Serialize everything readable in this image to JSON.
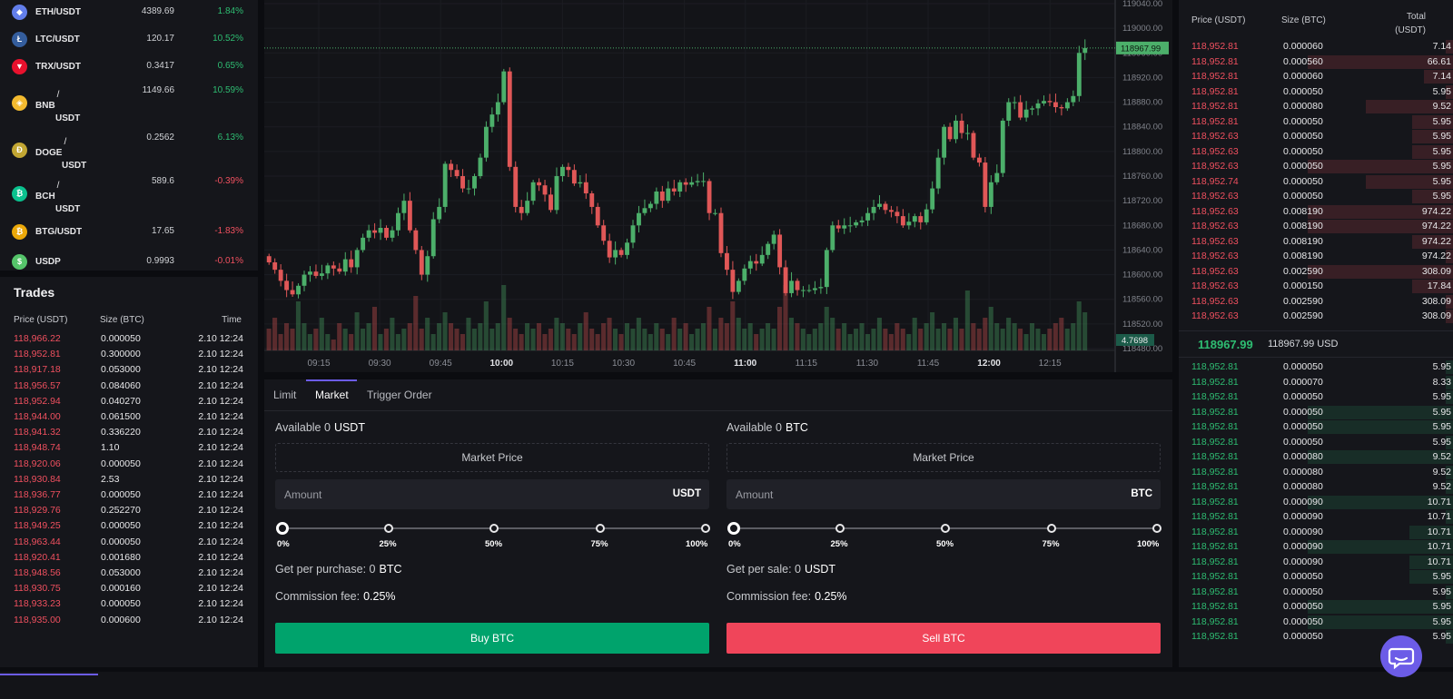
{
  "markets": [
    {
      "base": "ETH",
      "quote": "/USDT",
      "price": "4389.69",
      "change": "1.84%",
      "dir": "up",
      "icon_color": "#627eea",
      "icon": "eth-icon",
      "glyph": "◆",
      "split": false
    },
    {
      "base": "LTC",
      "quote": "/USDT",
      "price": "120.17",
      "change": "10.52%",
      "dir": "up",
      "icon_color": "#345d9d",
      "icon": "ltc-icon",
      "glyph": "Ł",
      "split": false
    },
    {
      "base": "TRX",
      "quote": "/USDT",
      "price": "0.3417",
      "change": "0.65%",
      "dir": "up",
      "icon_color": "#e8112d",
      "icon": "trx-icon",
      "glyph": "▼",
      "split": false
    },
    {
      "base": "BNB",
      "quote": "USDT",
      "price": "1149.66",
      "change": "10.59%",
      "dir": "up",
      "icon_color": "#f3ba2f",
      "icon": "bnb-icon",
      "glyph": "◈",
      "split": true
    },
    {
      "base": "DOGE",
      "quote": "USDT",
      "price": "0.2562",
      "change": "6.13%",
      "dir": "up",
      "icon_color": "#c2a633",
      "icon": "doge-icon",
      "glyph": "Ð",
      "split": true
    },
    {
      "base": "BCH",
      "quote": "USDT",
      "price": "589.6",
      "change": "-0.39%",
      "dir": "down",
      "icon_color": "#0ac18e",
      "icon": "bch-icon",
      "glyph": "₿",
      "split": true
    },
    {
      "base": "BTG",
      "quote": "/USDT",
      "price": "17.65",
      "change": "-1.83%",
      "dir": "down",
      "icon_color": "#eba809",
      "icon": "btg-icon",
      "glyph": "₿",
      "split": false
    },
    {
      "base": "USDP",
      "quote": "",
      "price": "0.9993",
      "change": "-0.01%",
      "dir": "down",
      "icon_color": "#55c46a",
      "icon": "usdp-icon",
      "glyph": "$",
      "split": false
    }
  ],
  "trades": {
    "title": "Trades",
    "headers": {
      "price": "Price (USDT)",
      "size": "Size (BTC)",
      "time": "Time"
    },
    "rows": [
      {
        "price": "118,966.22",
        "size": "0.000050",
        "time": "2.10 12:24"
      },
      {
        "price": "118,952.81",
        "size": "0.300000",
        "time": "2.10 12:24"
      },
      {
        "price": "118,917.18",
        "size": "0.053000",
        "time": "2.10 12:24"
      },
      {
        "price": "118,956.57",
        "size": "0.084060",
        "time": "2.10 12:24"
      },
      {
        "price": "118,952.94",
        "size": "0.040270",
        "time": "2.10 12:24"
      },
      {
        "price": "118,944.00",
        "size": "0.061500",
        "time": "2.10 12:24"
      },
      {
        "price": "118,941.32",
        "size": "0.336220",
        "time": "2.10 12:24"
      },
      {
        "price": "118,948.74",
        "size": "1.10",
        "time": "2.10 12:24"
      },
      {
        "price": "118,920.06",
        "size": "0.000050",
        "time": "2.10 12:24"
      },
      {
        "price": "118,930.84",
        "size": "2.53",
        "time": "2.10 12:24"
      },
      {
        "price": "118,936.77",
        "size": "0.000050",
        "time": "2.10 12:24"
      },
      {
        "price": "118,929.76",
        "size": "0.252270",
        "time": "2.10 12:24"
      },
      {
        "price": "118,949.25",
        "size": "0.000050",
        "time": "2.10 12:24"
      },
      {
        "price": "118,963.44",
        "size": "0.000050",
        "time": "2.10 12:24"
      },
      {
        "price": "118,920.41",
        "size": "0.001680",
        "time": "2.10 12:24"
      },
      {
        "price": "118,948.56",
        "size": "0.053000",
        "time": "2.10 12:24"
      },
      {
        "price": "118,930.75",
        "size": "0.000160",
        "time": "2.10 12:24"
      },
      {
        "price": "118,933.23",
        "size": "0.000050",
        "time": "2.10 12:24"
      },
      {
        "price": "118,935.00",
        "size": "0.000600",
        "time": "2.10 12:24"
      }
    ]
  },
  "chart": {
    "price_ticks": [
      "119040.00",
      "119000.00",
      "118960.00",
      "118920.00",
      "118880.00",
      "118840.00",
      "118800.00",
      "118760.00",
      "118720.00",
      "118680.00",
      "118640.00",
      "118600.00",
      "118560.00",
      "118520.00",
      "118480.00"
    ],
    "time_ticks": [
      "09:15",
      "09:30",
      "09:45",
      "10:00",
      "10:15",
      "10:30",
      "10:45",
      "11:00",
      "11:15",
      "11:30",
      "11:45",
      "12:00",
      "12:15"
    ],
    "bold_times": [
      "10:00",
      "11:00",
      "12:00"
    ],
    "last_price": "118967.99",
    "volume_label": "4.7698",
    "up_color": "#4caf6a",
    "down_color": "#e05757",
    "closes": [
      118620,
      118608,
      118590,
      118575,
      118568,
      118582,
      118600,
      118605,
      118598,
      118602,
      118615,
      118610,
      118605,
      118625,
      118612,
      118640,
      118660,
      118672,
      118668,
      118676,
      118660,
      118672,
      118700,
      118720,
      118672,
      118640,
      118600,
      118630,
      118690,
      118710,
      118780,
      118770,
      118760,
      118740,
      118740,
      118760,
      118790,
      118840,
      118860,
      118880,
      118930,
      118775,
      118710,
      118700,
      118720,
      118750,
      118745,
      118730,
      118705,
      118760,
      118775,
      118770,
      118748,
      118750,
      118732,
      118710,
      118680,
      118655,
      118628,
      118640,
      118632,
      118652,
      118680,
      118700,
      118708,
      118715,
      118735,
      118720,
      118740,
      118735,
      118750,
      118746,
      118750,
      118752,
      118752,
      118700,
      118700,
      118635,
      118608,
      118572,
      118590,
      118610,
      118622,
      118618,
      118632,
      118650,
      118665,
      118612,
      118570,
      118590,
      118575,
      118575,
      118575,
      118578,
      118580,
      118640,
      118680,
      118675,
      118680,
      118680,
      118685,
      118688,
      118700,
      118710,
      118715,
      118705,
      118702,
      118695,
      118680,
      118686,
      118695,
      118685,
      118706,
      118740,
      118790,
      118840,
      118820,
      118850,
      118830,
      118830,
      118790,
      118782,
      118710,
      118750,
      118765,
      118850,
      118880,
      118880,
      118855,
      118868,
      118870,
      118878,
      118882,
      118880,
      118872,
      118870,
      118880,
      118890,
      118960,
      118968
    ],
    "vols": [
      4,
      6,
      3,
      5,
      4,
      9,
      5,
      3,
      4,
      6,
      3,
      2,
      5,
      4,
      3,
      7,
      4,
      5,
      8,
      3,
      4,
      6,
      3,
      4,
      5,
      10,
      4,
      6,
      3,
      5,
      7,
      5,
      4,
      3,
      6,
      4,
      5,
      9,
      4,
      5,
      12,
      6,
      4,
      3,
      5,
      4,
      5,
      3,
      4,
      6,
      5,
      4,
      3,
      5,
      7,
      4,
      3,
      5,
      6,
      4,
      3,
      5,
      4,
      6,
      4,
      3,
      5,
      4,
      3,
      6,
      4,
      5,
      3,
      4,
      5,
      8,
      4,
      6,
      5,
      9,
      6,
      4,
      5,
      3,
      4,
      5,
      4,
      8,
      12,
      6,
      5,
      4,
      3,
      4,
      5,
      8,
      6,
      4,
      5,
      3,
      4,
      5,
      3,
      4,
      6,
      4,
      3,
      5,
      4,
      3,
      6,
      4,
      5,
      7,
      4,
      5,
      4,
      6,
      4,
      11,
      5,
      4,
      6,
      8,
      5,
      4,
      6,
      5,
      4,
      3,
      5,
      4,
      3,
      4,
      5,
      6,
      4,
      5,
      9,
      7
    ]
  },
  "order_form": {
    "tabs": [
      "Limit",
      "Market",
      "Trigger Order"
    ],
    "active_tab": "Market",
    "buy": {
      "available_label": "Available 0",
      "available_unit": "USDT",
      "market_price": "Market Price",
      "amount_placeholder": "Amount",
      "amount_unit": "USDT",
      "get_label": "Get per purchase: 0",
      "get_unit": "BTC",
      "commission_label": "Commission fee:",
      "commission_value": "0.25%",
      "button": "Buy BTC",
      "button_color": "#00a36c"
    },
    "sell": {
      "available_label": "Available 0",
      "available_unit": "BTC",
      "market_price": "Market Price",
      "amount_placeholder": "Amount",
      "amount_unit": "BTC",
      "get_label": "Get per sale: 0",
      "get_unit": "USDT",
      "commission_label": "Commission fee:",
      "commission_value": "0.25%",
      "button": "Sell BTC",
      "button_color": "#f0455a"
    },
    "slider_marks": [
      "0%",
      "25%",
      "50%",
      "75%",
      "100%"
    ],
    "slider_value": 0
  },
  "orderbook": {
    "headers": {
      "price": "Price (USDT)",
      "size": "Size (BTC)",
      "total_line1": "Total",
      "total_line2": "(USDT)"
    },
    "asks": [
      {
        "price": "118,952.81",
        "size": "0.000060",
        "total": "7.14",
        "depth": 0.04
      },
      {
        "price": "118,952.81",
        "size": "0.000560",
        "total": "66.61",
        "depth": 1.0
      },
      {
        "price": "118,952.81",
        "size": "0.000060",
        "total": "7.14",
        "depth": 0.2
      },
      {
        "price": "118,952.81",
        "size": "0.000050",
        "total": "5.95",
        "depth": 0.03
      },
      {
        "price": "118,952.81",
        "size": "0.000080",
        "total": "9.52",
        "depth": 0.6
      },
      {
        "price": "118,952.81",
        "size": "0.000050",
        "total": "5.95",
        "depth": 0.28
      },
      {
        "price": "118,952.63",
        "size": "0.000050",
        "total": "5.95",
        "depth": 0.28
      },
      {
        "price": "118,952.63",
        "size": "0.000050",
        "total": "5.95",
        "depth": 0.28
      },
      {
        "price": "118,952.63",
        "size": "0.000050",
        "total": "5.95",
        "depth": 1.0
      },
      {
        "price": "118,952.74",
        "size": "0.000050",
        "total": "5.95",
        "depth": 0.6
      },
      {
        "price": "118,952.63",
        "size": "0.000050",
        "total": "5.95",
        "depth": 0.28
      },
      {
        "price": "118,952.63",
        "size": "0.008190",
        "total": "974.22",
        "depth": 1.0
      },
      {
        "price": "118,952.63",
        "size": "0.008190",
        "total": "974.22",
        "depth": 1.0
      },
      {
        "price": "118,952.63",
        "size": "0.008190",
        "total": "974.22",
        "depth": 0.28
      },
      {
        "price": "118,952.63",
        "size": "0.008190",
        "total": "974.22",
        "depth": 0.03
      },
      {
        "price": "118,952.63",
        "size": "0.002590",
        "total": "308.09",
        "depth": 1.0
      },
      {
        "price": "118,952.63",
        "size": "0.000150",
        "total": "17.84",
        "depth": 0.28
      },
      {
        "price": "118,952.63",
        "size": "0.002590",
        "total": "308.09",
        "depth": 0.03
      },
      {
        "price": "118,952.63",
        "size": "0.002590",
        "total": "308.09",
        "depth": 0.03
      }
    ],
    "mid_price": "118967.99",
    "mid_usd": "118967.99 USD",
    "bids": [
      {
        "price": "118,952.81",
        "size": "0.000050",
        "total": "5.95",
        "depth": 0.05
      },
      {
        "price": "118,952.81",
        "size": "0.000070",
        "total": "8.33",
        "depth": 0.05
      },
      {
        "price": "118,952.81",
        "size": "0.000050",
        "total": "5.95",
        "depth": 0.05
      },
      {
        "price": "118,952.81",
        "size": "0.000050",
        "total": "5.95",
        "depth": 1.0
      },
      {
        "price": "118,952.81",
        "size": "0.000050",
        "total": "5.95",
        "depth": 1.0
      },
      {
        "price": "118,952.81",
        "size": "0.000050",
        "total": "5.95",
        "depth": 0.05
      },
      {
        "price": "118,952.81",
        "size": "0.000080",
        "total": "9.52",
        "depth": 1.0
      },
      {
        "price": "118,952.81",
        "size": "0.000080",
        "total": "9.52",
        "depth": 0.05
      },
      {
        "price": "118,952.81",
        "size": "0.000080",
        "total": "9.52",
        "depth": 0.05
      },
      {
        "price": "118,952.81",
        "size": "0.000090",
        "total": "10.71",
        "depth": 1.0
      },
      {
        "price": "118,952.81",
        "size": "0.000090",
        "total": "10.71",
        "depth": 0.05
      },
      {
        "price": "118,952.81",
        "size": "0.000090",
        "total": "10.71",
        "depth": 0.3
      },
      {
        "price": "118,952.81",
        "size": "0.000090",
        "total": "10.71",
        "depth": 1.0
      },
      {
        "price": "118,952.81",
        "size": "0.000090",
        "total": "10.71",
        "depth": 0.3
      },
      {
        "price": "118,952.81",
        "size": "0.000050",
        "total": "5.95",
        "depth": 0.3
      },
      {
        "price": "118,952.81",
        "size": "0.000050",
        "total": "5.95",
        "depth": 0.05
      },
      {
        "price": "118,952.81",
        "size": "0.000050",
        "total": "5.95",
        "depth": 1.0
      },
      {
        "price": "118,952.81",
        "size": "0.000050",
        "total": "5.95",
        "depth": 1.0
      },
      {
        "price": "118,952.81",
        "size": "0.000050",
        "total": "5.95",
        "depth": 0.05
      }
    ]
  },
  "colors": {
    "accent": "#6c5ce7",
    "up": "#2ebd72",
    "down": "#f0505f"
  }
}
